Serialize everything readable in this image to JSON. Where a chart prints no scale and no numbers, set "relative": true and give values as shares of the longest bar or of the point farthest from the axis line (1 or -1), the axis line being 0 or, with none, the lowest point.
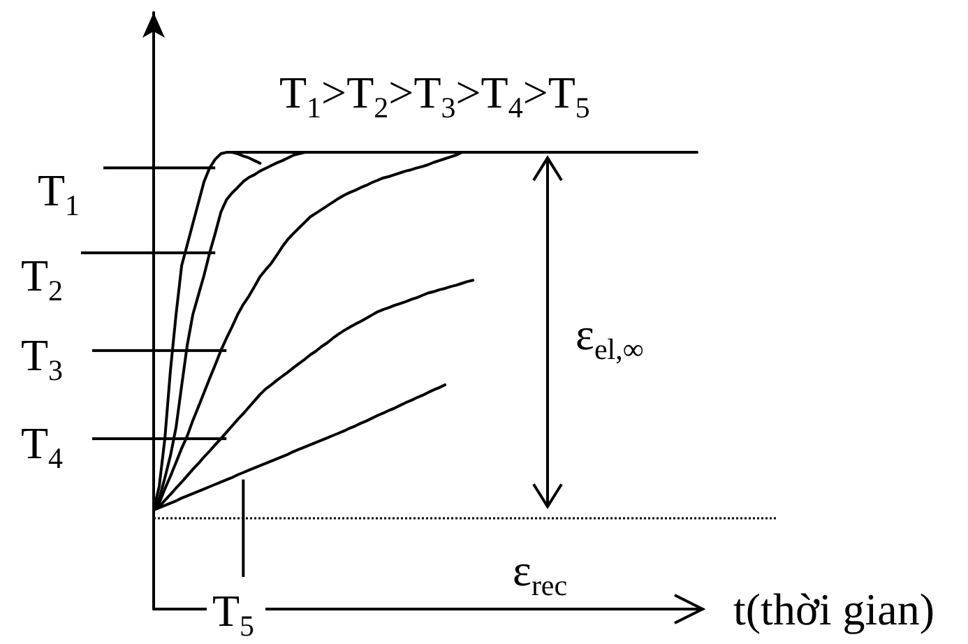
{
  "chart_data": {
    "type": "line",
    "relative": true,
    "legend": "left",
    "xlabel": "t(thời gian)",
    "annotations": [
      "T$_{1}$>T$_{2}$>T$_{3}$>T$_{4}$>T$_{5}$",
      "ε$_{el,∞}$",
      "ε$_{rec}$"
    ],
    "ref_lines": [
      {
        "axis": "y",
        "value": 0.2,
        "line_style": "dotted",
        "color": "#000000"
      }
    ],
    "categories": [
      null,
      null,
      null,
      null,
      null,
      null,
      null,
      null,
      null,
      null,
      null,
      null,
      null,
      null,
      null,
      null,
      null,
      null,
      null,
      null,
      null,
      null,
      null,
      null,
      null,
      null,
      null,
      null,
      null,
      null,
      null,
      null,
      null,
      null,
      null,
      null,
      null,
      null,
      null,
      null,
      null,
      null,
      null,
      null,
      null,
      null,
      null,
      null,
      null,
      null,
      null,
      null,
      null,
      null,
      null,
      null,
      null,
      null,
      null,
      null,
      null,
      null,
      null,
      null,
      null,
      null,
      null,
      null,
      null,
      null,
      null,
      null,
      null,
      null,
      null,
      null,
      null,
      null,
      null,
      null,
      null,
      null,
      null,
      null,
      null,
      null,
      null,
      null,
      null,
      null,
      null,
      null,
      null,
      null,
      null,
      null,
      null,
      null,
      null
    ],
    "series": [
      {
        "name": "T$_{1}$",
        "color": "#000000",
        "values": [
          0.217,
          0.269,
          0.373,
          0.523,
          0.645,
          0.752,
          0.798,
          0.844,
          0.89,
          0.936,
          0.966,
          0.985,
          0.997,
          1,
          1,
          0.997,
          0.992,
          0.988,
          0.982,
          0.976,
          null,
          null,
          null,
          null,
          null,
          null,
          null,
          null,
          null,
          null,
          null,
          null,
          null,
          null,
          null,
          null,
          null,
          null,
          null,
          null,
          null,
          null,
          null,
          null,
          null,
          null,
          null,
          null,
          null,
          null,
          null,
          null,
          null,
          null,
          null,
          null,
          null,
          null,
          null,
          null,
          null,
          null,
          null,
          null,
          null,
          null,
          null,
          null,
          null,
          null,
          null,
          null,
          null,
          null,
          null,
          null,
          null,
          null,
          null,
          null,
          null,
          null,
          null,
          null,
          null,
          null,
          null,
          null,
          null,
          null,
          null,
          null,
          null,
          null,
          null,
          null,
          null,
          null,
          null
        ]
      },
      {
        "name": "T$_{2}$",
        "color": "#000000",
        "values": [
          0.217,
          0.242,
          0.287,
          0.336,
          0.398,
          0.489,
          0.578,
          0.645,
          0.688,
          0.731,
          0.78,
          0.823,
          0.869,
          0.896,
          0.911,
          0.923,
          0.936,
          0.945,
          0.951,
          0.959,
          0.965,
          0.971,
          0.977,
          0.982,
          0.988,
          0.994,
          0.997,
          1,
          null,
          null,
          null,
          null,
          null,
          null,
          null,
          null,
          null,
          null,
          null,
          null,
          null,
          null,
          null,
          null,
          null,
          null,
          null,
          null,
          null,
          null,
          null,
          null,
          null,
          null,
          null,
          null,
          null,
          null,
          null,
          null,
          null,
          null,
          null,
          null,
          null,
          null,
          null,
          null,
          null,
          null,
          null,
          null,
          null,
          null,
          null,
          null,
          null,
          null,
          null,
          null,
          null,
          null,
          null,
          null,
          null,
          null,
          null,
          null,
          null,
          null,
          null,
          null,
          null,
          null,
          null,
          null,
          null,
          null,
          null
        ]
      },
      {
        "name": "T$_{3}$",
        "color": "#000000",
        "values": [
          0.217,
          0.232,
          0.263,
          0.291,
          0.321,
          0.352,
          0.379,
          0.413,
          0.443,
          0.474,
          0.505,
          0.535,
          0.566,
          0.593,
          0.618,
          0.645,
          0.667,
          0.685,
          0.706,
          0.728,
          0.743,
          0.757,
          0.775,
          0.794,
          0.81,
          0.823,
          0.835,
          0.847,
          0.859,
          0.867,
          0.875,
          0.883,
          0.891,
          0.899,
          0.906,
          0.912,
          0.917,
          0.923,
          0.928,
          0.934,
          0.939,
          0.944,
          0.947,
          0.951,
          0.955,
          0.959,
          0.962,
          0.966,
          0.969,
          0.973,
          0.978,
          0.982,
          0.986,
          0.99,
          0.994,
          1,
          null,
          null,
          null,
          null,
          null,
          null,
          null,
          null,
          null,
          null,
          null,
          null,
          null,
          null,
          null,
          null,
          null,
          null,
          null,
          null,
          null,
          null,
          null,
          null,
          null,
          null,
          null,
          null,
          null,
          null,
          null,
          null,
          null,
          null,
          null,
          null,
          null,
          null,
          null,
          null,
          null,
          null,
          null
        ]
      },
      {
        "name": "T$_{4}$",
        "color": "#000000",
        "values": [
          0.217,
          0.224,
          0.238,
          0.251,
          0.265,
          0.278,
          0.292,
          0.306,
          0.319,
          0.333,
          0.346,
          0.36,
          0.373,
          0.387,
          0.401,
          0.415,
          0.428,
          0.442,
          0.456,
          0.47,
          0.482,
          0.491,
          0.501,
          0.51,
          0.519,
          0.529,
          0.538,
          0.547,
          0.557,
          0.565,
          0.575,
          0.583,
          0.593,
          0.602,
          0.61,
          0.617,
          0.624,
          0.63,
          0.637,
          0.644,
          0.651,
          0.656,
          0.66,
          0.665,
          0.669,
          0.673,
          0.678,
          0.682,
          0.687,
          0.692,
          0.695,
          0.699,
          0.702,
          0.706,
          0.709,
          0.713,
          0.717,
          0.72,
          null,
          null,
          null,
          null,
          null,
          null,
          null,
          null,
          null,
          null,
          null,
          null,
          null,
          null,
          null,
          null,
          null,
          null,
          null,
          null,
          null,
          null,
          null,
          null,
          null,
          null,
          null,
          null,
          null,
          null,
          null,
          null,
          null,
          null,
          null,
          null,
          null,
          null,
          null,
          null,
          null
        ]
      },
      {
        "name": "T$_{5}$",
        "color": "#000000",
        "values": [
          0.217,
          0.222,
          0.227,
          0.232,
          0.237,
          0.243,
          0.248,
          0.253,
          0.258,
          0.263,
          0.268,
          0.273,
          0.278,
          0.283,
          0.288,
          0.294,
          0.299,
          0.304,
          0.309,
          0.314,
          0.319,
          0.324,
          0.329,
          0.334,
          0.339,
          0.345,
          0.35,
          0.355,
          0.36,
          0.365,
          0.37,
          0.375,
          0.38,
          0.385,
          0.39,
          0.396,
          0.401,
          0.407,
          0.412,
          0.418,
          0.424,
          0.429,
          0.435,
          0.44,
          0.446,
          0.452,
          0.457,
          0.463,
          0.468,
          0.474,
          0.48,
          0.485,
          0.491,
          null,
          null,
          null,
          null,
          null,
          null,
          null,
          null,
          null,
          null,
          null,
          null,
          null,
          null,
          null,
          null,
          null,
          null,
          null,
          null,
          null,
          null,
          null,
          null,
          null,
          null,
          null,
          null,
          null,
          null,
          null,
          null,
          null,
          null,
          null,
          null,
          null,
          null,
          null,
          null,
          null,
          null,
          null,
          null,
          null,
          null
        ]
      },
      {
        "color": "#000000",
        "values": [
          null,
          null,
          null,
          null,
          null,
          null,
          null,
          null,
          null,
          null,
          null,
          null,
          null,
          null,
          1,
          1,
          1,
          1,
          1,
          1,
          1,
          1,
          1,
          1,
          1,
          1,
          1,
          1,
          1,
          1,
          1,
          1,
          1,
          1,
          1,
          1,
          1,
          1,
          1,
          1,
          1,
          1,
          1,
          1,
          1,
          1,
          1,
          1,
          1,
          1,
          1,
          1,
          1,
          1,
          1,
          1,
          1,
          1,
          1,
          1,
          1,
          1,
          1,
          1,
          1,
          1,
          1,
          1,
          1,
          1,
          1,
          1,
          1,
          1,
          1,
          1,
          1,
          1,
          1,
          1,
          1,
          1,
          1,
          1,
          1,
          1,
          1,
          1,
          1,
          1,
          1,
          1,
          1,
          1,
          1,
          1,
          1,
          1,
          null
        ]
      }
    ]
  }
}
